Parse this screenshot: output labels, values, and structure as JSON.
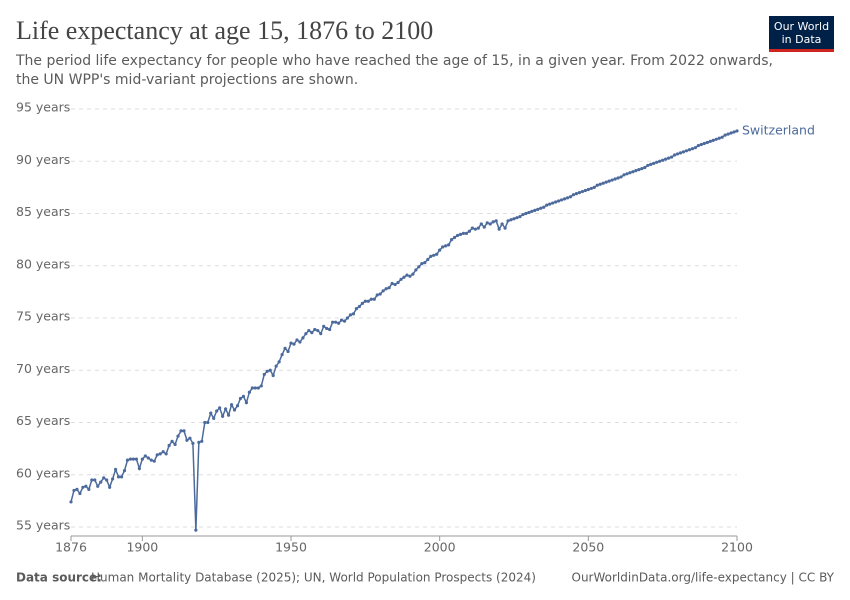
{
  "chart_data": {
    "type": "line",
    "title": "Life expectancy at age 15, 1876 to 2100",
    "subtitle": [
      "The period life expectancy for people who have reached the age of 15, in a given year. From 2022 onwards,",
      "the UN WPP's mid-variant projections are shown."
    ],
    "logo": [
      "Our World",
      "in Data"
    ],
    "source_label": "Data source:",
    "source": "Human Mortality Database (2025); UN, World Population Prospects (2024)",
    "credit": "OurWorldinData.org/life-expectancy | CC BY",
    "x": [
      1876,
      1877,
      1878,
      1879,
      1880,
      1881,
      1882,
      1883,
      1884,
      1885,
      1886,
      1887,
      1888,
      1889,
      1890,
      1891,
      1892,
      1893,
      1894,
      1895,
      1896,
      1897,
      1898,
      1899,
      1900,
      1901,
      1902,
      1903,
      1904,
      1905,
      1906,
      1907,
      1908,
      1909,
      1910,
      1911,
      1912,
      1913,
      1914,
      1915,
      1916,
      1917,
      1918,
      1919,
      1920,
      1921,
      1922,
      1923,
      1924,
      1925,
      1926,
      1927,
      1928,
      1929,
      1930,
      1931,
      1932,
      1933,
      1934,
      1935,
      1936,
      1937,
      1938,
      1939,
      1940,
      1941,
      1942,
      1943,
      1944,
      1945,
      1946,
      1947,
      1948,
      1949,
      1950,
      1951,
      1952,
      1953,
      1954,
      1955,
      1956,
      1957,
      1958,
      1959,
      1960,
      1961,
      1962,
      1963,
      1964,
      1965,
      1966,
      1967,
      1968,
      1969,
      1970,
      1971,
      1972,
      1973,
      1974,
      1975,
      1976,
      1977,
      1978,
      1979,
      1980,
      1981,
      1982,
      1983,
      1984,
      1985,
      1986,
      1987,
      1988,
      1989,
      1990,
      1991,
      1992,
      1993,
      1994,
      1995,
      1996,
      1997,
      1998,
      1999,
      2000,
      2001,
      2002,
      2003,
      2004,
      2005,
      2006,
      2007,
      2008,
      2009,
      2010,
      2011,
      2012,
      2013,
      2014,
      2015,
      2016,
      2017,
      2018,
      2019,
      2020,
      2021,
      2022,
      2023,
      2024,
      2025,
      2026,
      2027,
      2028,
      2029,
      2030,
      2031,
      2032,
      2033,
      2034,
      2035,
      2036,
      2037,
      2038,
      2039,
      2040,
      2041,
      2042,
      2043,
      2044,
      2045,
      2046,
      2047,
      2048,
      2049,
      2050,
      2051,
      2052,
      2053,
      2054,
      2055,
      2056,
      2057,
      2058,
      2059,
      2060,
      2061,
      2062,
      2063,
      2064,
      2065,
      2066,
      2067,
      2068,
      2069,
      2070,
      2071,
      2072,
      2073,
      2074,
      2075,
      2076,
      2077,
      2078,
      2079,
      2080,
      2081,
      2082,
      2083,
      2084,
      2085,
      2086,
      2087,
      2088,
      2089,
      2090,
      2091,
      2092,
      2093,
      2094,
      2095,
      2096,
      2097,
      2098,
      2099,
      2100
    ],
    "series": [
      {
        "name": "Switzerland",
        "color": "#4c6a9c",
        "values": [
          57.4,
          58.5,
          58.6,
          58.2,
          58.8,
          58.9,
          58.6,
          59.5,
          59.5,
          58.9,
          59.3,
          59.7,
          59.5,
          58.8,
          59.6,
          60.5,
          59.8,
          59.8,
          60.4,
          61.4,
          61.5,
          61.5,
          61.5,
          60.6,
          61.5,
          61.8,
          61.6,
          61.4,
          61.3,
          61.9,
          62.0,
          62.2,
          62.0,
          62.8,
          63.2,
          62.9,
          63.7,
          64.2,
          64.2,
          63.3,
          63.5,
          63.0,
          54.7,
          63.1,
          63.2,
          65.0,
          65.0,
          65.9,
          65.4,
          66.1,
          66.4,
          65.6,
          66.3,
          65.7,
          66.7,
          66.2,
          66.6,
          67.3,
          67.5,
          66.9,
          67.9,
          68.3,
          68.3,
          68.3,
          68.5,
          69.6,
          69.9,
          70.0,
          69.5,
          70.4,
          70.8,
          71.5,
          72.1,
          71.8,
          72.6,
          72.5,
          72.9,
          72.7,
          73.1,
          73.5,
          73.8,
          73.6,
          73.9,
          73.8,
          73.5,
          74.2,
          74.0,
          73.9,
          74.6,
          74.6,
          74.5,
          74.8,
          74.7,
          75.0,
          75.3,
          75.4,
          75.9,
          76.1,
          76.4,
          76.6,
          76.6,
          76.8,
          76.8,
          77.2,
          77.3,
          77.6,
          77.8,
          77.9,
          78.3,
          78.2,
          78.4,
          78.7,
          78.9,
          79.1,
          79.0,
          79.2,
          79.6,
          79.9,
          80.2,
          80.3,
          80.6,
          80.9,
          81.0,
          81.1,
          81.5,
          81.8,
          81.9,
          82.0,
          82.5,
          82.7,
          82.9,
          83.0,
          83.1,
          83.1,
          83.3,
          83.6,
          83.5,
          83.6,
          84.0,
          83.7,
          84.1,
          84.0,
          84.2,
          84.3,
          83.5,
          84.0,
          83.6,
          84.3,
          84.4,
          84.5,
          84.6,
          84.7,
          84.9,
          85.0,
          85.1,
          85.2,
          85.3,
          85.4,
          85.5,
          85.6,
          85.8,
          85.9,
          86.0,
          86.1,
          86.2,
          86.3,
          86.4,
          86.5,
          86.6,
          86.8,
          86.9,
          87.0,
          87.1,
          87.2,
          87.3,
          87.4,
          87.5,
          87.7,
          87.8,
          87.9,
          88.0,
          88.1,
          88.2,
          88.3,
          88.4,
          88.5,
          88.7,
          88.8,
          88.9,
          89.0,
          89.1,
          89.2,
          89.3,
          89.4,
          89.6,
          89.7,
          89.8,
          89.9,
          90.0,
          90.1,
          90.2,
          90.3,
          90.4,
          90.6,
          90.7,
          90.8,
          90.9,
          91.0,
          91.1,
          91.2,
          91.3,
          91.5,
          91.6,
          91.7,
          91.8,
          91.9,
          92.0,
          92.1,
          92.2,
          92.3,
          92.5,
          92.6,
          92.7,
          92.8,
          92.9
        ]
      }
    ],
    "xlim": [
      1876,
      2100
    ],
    "xticks": [
      1876,
      1900,
      1950,
      2000,
      2050,
      2100
    ],
    "ylim": [
      55,
      95
    ],
    "yticks": [
      {
        "value": 55,
        "label": "55 years"
      },
      {
        "value": 60,
        "label": "60 years"
      },
      {
        "value": 65,
        "label": "65 years"
      },
      {
        "value": 70,
        "label": "70 years"
      },
      {
        "value": 75,
        "label": "75 years"
      },
      {
        "value": 80,
        "label": "80 years"
      },
      {
        "value": 85,
        "label": "85 years"
      },
      {
        "value": 90,
        "label": "90 years"
      },
      {
        "value": 95,
        "label": "95 years"
      }
    ],
    "grid": true
  }
}
